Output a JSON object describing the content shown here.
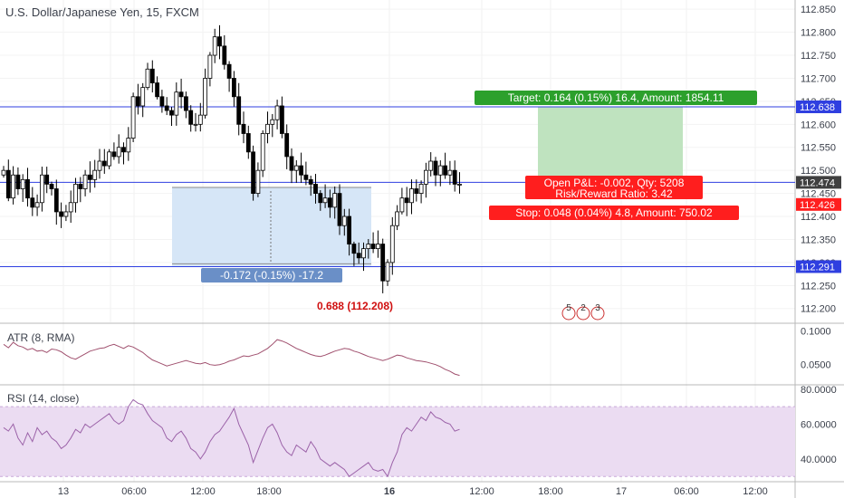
{
  "header": {
    "title": "U.S. Dollar/Japanese Yen, 15, FXCM"
  },
  "colors": {
    "up": "#ffffff",
    "down": "#000000",
    "candle_outline": "#000000",
    "hline": "#2f3fe0",
    "target_zone": "#bfe3bf",
    "measure_zone": "#d6e6f7",
    "target_label": "#2ca02c",
    "stop_label": "#ff1e1e",
    "atr_line": "#a0506e",
    "rsi_line": "#9b62a8",
    "rsi_band": "#ebdcf2",
    "measure_label": "#6a8fc7",
    "price_label_dark": "#404040"
  },
  "chart_data": [
    {
      "type": "candlestick",
      "title": "U.S. Dollar/Japanese Yen, 15, FXCM",
      "ylim": [
        112.17,
        112.87
      ],
      "y_ticks": [
        "112.850",
        "112.800",
        "112.750",
        "112.700",
        "112.650",
        "112.600",
        "112.550",
        "112.500",
        "112.450",
        "112.400",
        "112.350",
        "112.300",
        "112.250",
        "112.200"
      ],
      "x_ticks": [
        "13",
        "06:00",
        "12:00",
        "18:00",
        "16",
        "06:00",
        "12:00",
        "18:00",
        "17",
        "06:00",
        "12:00"
      ],
      "close": [
        112.5,
        112.44,
        112.49,
        112.46,
        112.48,
        112.44,
        112.42,
        112.43,
        112.49,
        112.47,
        112.46,
        112.41,
        112.4,
        112.41,
        112.43,
        112.47,
        112.46,
        112.49,
        112.48,
        112.5,
        112.52,
        112.51,
        112.54,
        112.53,
        112.55,
        112.54,
        112.57,
        112.66,
        112.64,
        112.68,
        112.72,
        112.69,
        112.66,
        112.64,
        112.63,
        112.62,
        112.67,
        112.66,
        112.63,
        112.6,
        112.6,
        112.62,
        112.7,
        112.75,
        112.79,
        112.77,
        112.73,
        112.7,
        112.66,
        112.6,
        112.58,
        112.54,
        112.45,
        112.5,
        112.58,
        112.6,
        112.61,
        112.64,
        112.58,
        112.53,
        112.5,
        112.51,
        112.49,
        112.48,
        112.47,
        112.45,
        112.43,
        112.44,
        112.42,
        112.45,
        112.38,
        112.4,
        112.34,
        112.32,
        112.31,
        112.33,
        112.34,
        112.33,
        112.34,
        112.26,
        112.3,
        112.38,
        112.41,
        112.44,
        112.43,
        112.46,
        112.45,
        112.47,
        112.5,
        112.52,
        112.49,
        112.51,
        112.49,
        112.5,
        112.47,
        112.47
      ],
      "series": [
        {
          "name": "ATR (8, RMA)",
          "label_values": [
            "0.1000",
            "0.0500"
          ],
          "ylim": [
            0.02,
            0.11
          ],
          "values": [
            0.08,
            0.075,
            0.083,
            0.078,
            0.076,
            0.072,
            0.074,
            0.07,
            0.071,
            0.068,
            0.073,
            0.072,
            0.069,
            0.064,
            0.06,
            0.058,
            0.062,
            0.066,
            0.07,
            0.072,
            0.074,
            0.075,
            0.078,
            0.08,
            0.077,
            0.074,
            0.078,
            0.076,
            0.072,
            0.068,
            0.062,
            0.057,
            0.054,
            0.051,
            0.048,
            0.05,
            0.052,
            0.054,
            0.056,
            0.054,
            0.052,
            0.051,
            0.053,
            0.05,
            0.049,
            0.05,
            0.052,
            0.055,
            0.057,
            0.06,
            0.063,
            0.062,
            0.064,
            0.066,
            0.07,
            0.074,
            0.08,
            0.087,
            0.085,
            0.082,
            0.078,
            0.074,
            0.071,
            0.068,
            0.065,
            0.063,
            0.062,
            0.064,
            0.067,
            0.07,
            0.072,
            0.074,
            0.073,
            0.07,
            0.068,
            0.065,
            0.062,
            0.06,
            0.058,
            0.056,
            0.058,
            0.061,
            0.064,
            0.063,
            0.06,
            0.058,
            0.056,
            0.055,
            0.054,
            0.052,
            0.05,
            0.047,
            0.043,
            0.04,
            0.036,
            0.034
          ]
        },
        {
          "name": "RSI (14, close)",
          "label_values": [
            "80.0000",
            "60.0000",
            "40.0000"
          ],
          "ylim": [
            27,
            82
          ],
          "band": [
            30,
            70
          ],
          "values": [
            58,
            56,
            60,
            52,
            48,
            55,
            50,
            58,
            54,
            56,
            52,
            50,
            46,
            48,
            52,
            57,
            55,
            60,
            58,
            60,
            62,
            64,
            66,
            62,
            60,
            62,
            70,
            74,
            72,
            71,
            66,
            62,
            60,
            58,
            52,
            50,
            54,
            56,
            52,
            46,
            44,
            40,
            44,
            50,
            54,
            56,
            60,
            64,
            69,
            60,
            54,
            48,
            38,
            45,
            52,
            58,
            60,
            55,
            48,
            44,
            42,
            48,
            46,
            44,
            50,
            46,
            40,
            38,
            36,
            38,
            36,
            34,
            30,
            32,
            34,
            36,
            38,
            34,
            33,
            34,
            30,
            38,
            44,
            54,
            58,
            56,
            60,
            64,
            62,
            67,
            64,
            63,
            61,
            60,
            56,
            57
          ]
        }
      ]
    }
  ],
  "annotations": {
    "target": "Target: 0.164 (0.15%) 16.4, Amount: 1854.11",
    "open_pl": "Open P&L: -0.002, Qty: 5208",
    "risk_reward": "Risk/Reward Ratio: 3.42",
    "stop": "Stop: 0.048 (0.04%) 4.8, Amount: 750.02",
    "measure": "-0.172 (-0.15%) -17.2",
    "low_label": "0.688 (112.208)",
    "price_tags": [
      "112.638",
      "112.474",
      "112.426",
      "112.291"
    ],
    "events": [
      "5",
      "2",
      "3"
    ]
  }
}
